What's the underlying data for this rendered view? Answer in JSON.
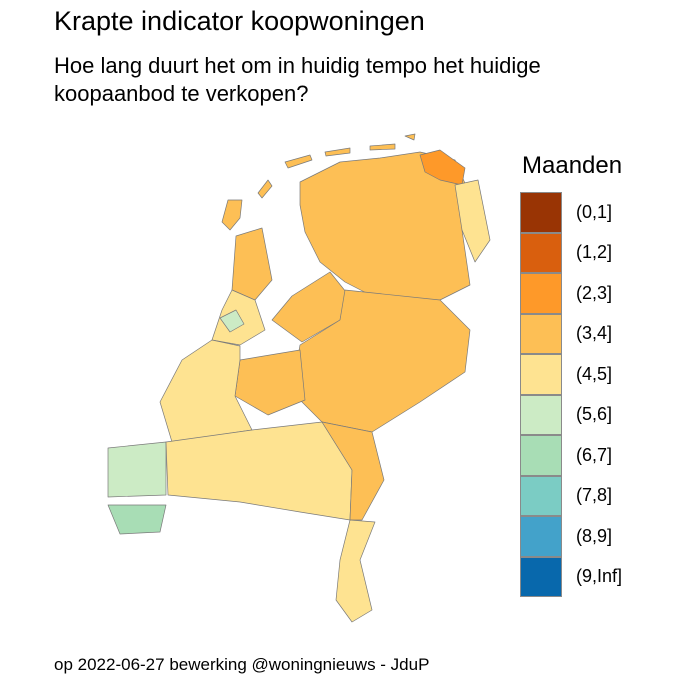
{
  "title": "Krapte indicator koopwoningen",
  "subtitle": "Hoe lang duurt het om in huidig tempo het huidige koopaanbod te verkopen?",
  "caption": "op 2022-06-27 bewerking @woningnieuws - JduP",
  "legend": {
    "title": "Maanden",
    "items": [
      {
        "label": "(0,1]",
        "color": "#993404"
      },
      {
        "label": "(1,2]",
        "color": "#D95F0E"
      },
      {
        "label": "(2,3]",
        "color": "#FE9929"
      },
      {
        "label": "(3,4]",
        "color": "#FDBF55"
      },
      {
        "label": "(4,5]",
        "color": "#FEE391"
      },
      {
        "label": "(5,6]",
        "color": "#CCEBC5"
      },
      {
        "label": "(6,7]",
        "color": "#A8DDB5"
      },
      {
        "label": "(7,8]",
        "color": "#7BCCC4"
      },
      {
        "label": "(8,9]",
        "color": "#43A2CA"
      },
      {
        "label": "(9,Inf]",
        "color": "#0868AC"
      }
    ]
  },
  "regions": [
    {
      "name": "noord",
      "class": "(3,4]"
    },
    {
      "name": "groningen-oost",
      "class": "(2,3]"
    },
    {
      "name": "oost-strook",
      "class": "(4,5]"
    },
    {
      "name": "noord-holland-noord",
      "class": "(3,4]"
    },
    {
      "name": "noord-holland-zuid",
      "class": "(4,5]"
    },
    {
      "name": "noord-holland-patch",
      "class": "(5,6]"
    },
    {
      "name": "flevoland",
      "class": "(3,4]"
    },
    {
      "name": "gelderland-overijssel",
      "class": "(3,4]"
    },
    {
      "name": "utrecht",
      "class": "(3,4]"
    },
    {
      "name": "zuid-holland",
      "class": "(4,5]"
    },
    {
      "name": "zeeland-eilanden",
      "class": "(5,6]"
    },
    {
      "name": "zeeuws-vlaanderen",
      "class": "(6,7]"
    },
    {
      "name": "brabant",
      "class": "(4,5]"
    },
    {
      "name": "brabant-oost",
      "class": "(3,4]"
    },
    {
      "name": "limburg",
      "class": "(4,5]"
    },
    {
      "name": "texel",
      "class": "(3,4]"
    },
    {
      "name": "wadden",
      "class": "(3,4]"
    }
  ]
}
